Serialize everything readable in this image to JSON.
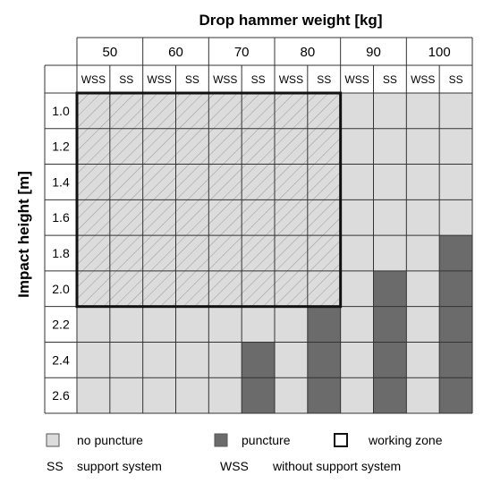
{
  "title": "Drop hammer weight [kg]",
  "ylabel": "Impact height [m]",
  "weights": [
    "50",
    "60",
    "70",
    "80",
    "90",
    "100"
  ],
  "sub_columns": [
    "WSS",
    "SS"
  ],
  "heights": [
    "1.0",
    "1.2",
    "1.4",
    "1.6",
    "1.8",
    "2.0",
    "2.2",
    "2.4",
    "2.6"
  ],
  "colors": {
    "no_puncture": "#dcdcdc",
    "puncture": "#6b6b6b",
    "grid": "#333333",
    "zone": "#111111"
  },
  "grid": [
    [
      "N",
      "N",
      "N",
      "N",
      "N",
      "N",
      "N",
      "N",
      "N",
      "N",
      "N",
      "N"
    ],
    [
      "N",
      "N",
      "N",
      "N",
      "N",
      "N",
      "N",
      "N",
      "N",
      "N",
      "N",
      "N"
    ],
    [
      "N",
      "N",
      "N",
      "N",
      "N",
      "N",
      "N",
      "N",
      "N",
      "N",
      "N",
      "N"
    ],
    [
      "N",
      "N",
      "N",
      "N",
      "N",
      "N",
      "N",
      "N",
      "N",
      "N",
      "N",
      "N"
    ],
    [
      "N",
      "N",
      "N",
      "N",
      "N",
      "N",
      "N",
      "N",
      "N",
      "N",
      "N",
      "P"
    ],
    [
      "N",
      "N",
      "N",
      "N",
      "N",
      "N",
      "N",
      "N",
      "N",
      "P",
      "N",
      "P"
    ],
    [
      "N",
      "N",
      "N",
      "N",
      "N",
      "N",
      "N",
      "P",
      "N",
      "P",
      "N",
      "P"
    ],
    [
      "N",
      "N",
      "N",
      "N",
      "N",
      "P",
      "N",
      "P",
      "N",
      "P",
      "N",
      "P"
    ],
    [
      "N",
      "N",
      "N",
      "N",
      "N",
      "P",
      "N",
      "P",
      "N",
      "P",
      "N",
      "P"
    ]
  ],
  "working_zone": {
    "weights": [
      "50",
      "60",
      "70",
      "80"
    ],
    "heights": [
      "1.0",
      "1.2",
      "1.4",
      "1.6",
      "1.8",
      "2.0"
    ]
  },
  "legend": {
    "no_puncture": "no puncture",
    "puncture": "puncture",
    "working_zone": "working zone",
    "ss_abbr": "SS",
    "ss_text": "support system",
    "wss_abbr": "WSS",
    "wss_text": "without support system"
  }
}
